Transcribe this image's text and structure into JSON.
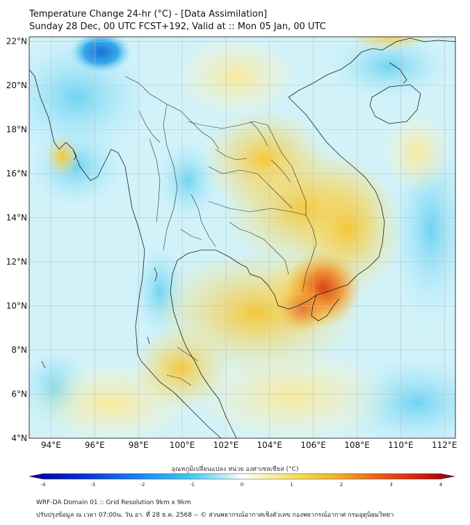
{
  "header": {
    "title_line1": "Temperature Change 24-hr (°C) - [Data Assimilation]",
    "title_line2": "Sunday 28 Dec, 00 UTC FCST+192, Valid at :: Mon 05 Jan, 00 UTC"
  },
  "axes": {
    "lat_labels": [
      "22°N",
      "20°N",
      "18°N",
      "16°N",
      "14°N",
      "12°N",
      "10°N",
      "8°N",
      "6°N",
      "4°N"
    ],
    "lon_labels": [
      "94°E",
      "96°E",
      "98°E",
      "100°E",
      "102°E",
      "104°E",
      "106°E",
      "108°E",
      "110°E",
      "112°E"
    ],
    "lat_values": [
      22,
      20,
      18,
      16,
      14,
      12,
      10,
      8,
      6,
      4
    ],
    "lon_values": [
      94,
      96,
      98,
      100,
      102,
      104,
      106,
      108,
      110,
      112
    ],
    "lat_range": [
      4,
      22.2
    ],
    "lon_range": [
      93,
      112.5
    ]
  },
  "colorbar": {
    "label": "อุณหภูมิเปลี่ยนแปลง หน่วย องศาเซลเซียส (°C)",
    "tick_labels": [
      "-4",
      "-3",
      "-2",
      "-1",
      "0",
      "1",
      "2",
      "3",
      "4"
    ],
    "tick_values": [
      -4,
      -3,
      -2,
      -1,
      0,
      1,
      2,
      3,
      4
    ],
    "range": [
      -4,
      4
    ]
  },
  "footer": {
    "line1": "WRF-DA Domain 01 :: Grid Resolution 9km x 9km",
    "line2": "ปรับปรุงข้อมูล ณ เวลา 07:00น. วัน อา. ที่ 28 ธ.ค. 2568 -- © ส่วนพยากรณ์อากาศเชิงตัวเลข กองพยากรณ์อากาศ กรมอุตุนิยมวิทยา"
  },
  "colors": {
    "ocean_cool": "#8fe0f5",
    "warm_land": "#f6d24a",
    "hot_spot": "#e0501a",
    "border_line": "#1a1a1a"
  }
}
